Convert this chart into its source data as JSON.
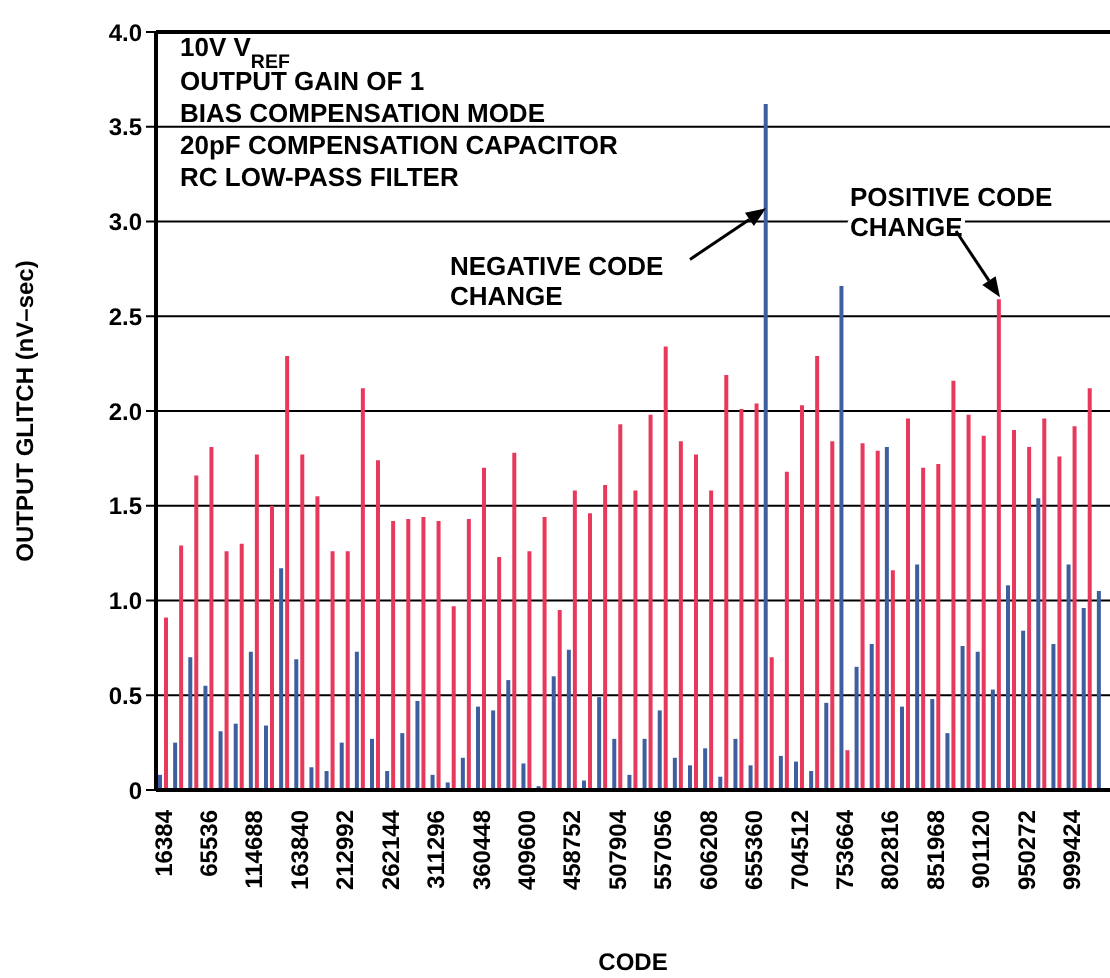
{
  "chart_data": {
    "type": "bar",
    "xlabel": "CODE",
    "ylabel": "OUTPUT GLITCH (nV–sec)",
    "categories": [
      "16384",
      null,
      null,
      "65536",
      null,
      null,
      "114688",
      null,
      null,
      "163840",
      null,
      null,
      "212992",
      null,
      null,
      "262144",
      null,
      null,
      "311296",
      null,
      null,
      "360448",
      null,
      null,
      "409600",
      null,
      null,
      "458752",
      null,
      null,
      "507904",
      null,
      null,
      "557056",
      null,
      null,
      "606208",
      null,
      null,
      "655360",
      null,
      null,
      "704512",
      null,
      null,
      "753664",
      null,
      null,
      "802816",
      null,
      null,
      "851968",
      null,
      null,
      "901120",
      null,
      null,
      "950272",
      null,
      null,
      "999424",
      null,
      null
    ],
    "series": [
      {
        "color": "#3d5f9f",
        "values": [
          0.08,
          0.25,
          0.7,
          0.55,
          0.31,
          0.35,
          0.73,
          0.34,
          1.17,
          0.69,
          0.12,
          0.1,
          0.25,
          0.73,
          0.27,
          0.1,
          0.3,
          0.47,
          0.08,
          0.04,
          0.17,
          0.44,
          0.42,
          0.58,
          0.14,
          0.02,
          0.6,
          0.74,
          0.05,
          0.49,
          0.27,
          0.08,
          0.27,
          0.42,
          0.17,
          0.13,
          0.22,
          0.07,
          0.27,
          0.13,
          3.62,
          0.18,
          0.15,
          0.1,
          0.46,
          2.66,
          0.65,
          0.77,
          1.81,
          0.44,
          1.19,
          0.48,
          0.3,
          0.76,
          0.73,
          0.53,
          1.08,
          0.84,
          1.54,
          0.77,
          1.19,
          0.96,
          1.05
        ]
      },
      {
        "color": "#e8385c",
        "values": [
          0.91,
          1.29,
          1.66,
          1.81,
          1.26,
          1.3,
          1.77,
          1.5,
          2.29,
          1.77,
          1.55,
          1.26,
          1.26,
          2.12,
          1.74,
          1.42,
          1.43,
          1.44,
          1.42,
          0.97,
          1.43,
          1.7,
          1.23,
          1.78,
          1.26,
          1.44,
          0.95,
          1.58,
          1.46,
          1.61,
          1.93,
          1.58,
          1.98,
          2.34,
          1.84,
          1.77,
          1.58,
          2.19,
          2.01,
          2.04,
          0.7,
          1.68,
          2.03,
          2.29,
          1.84,
          0.21,
          1.83,
          1.79,
          1.16,
          1.96,
          1.7,
          1.72,
          2.16,
          1.98,
          1.87,
          2.59,
          1.9,
          1.81,
          1.96,
          1.76,
          1.92,
          2.12,
          null
        ]
      }
    ],
    "ylim": [
      0,
      4
    ],
    "yticks": [
      0,
      0.5,
      {
        "value": 1,
        "label": "1.0"
      },
      {
        "value": 1.5,
        "label": "1.5"
      },
      {
        "value": 2,
        "label": "2.0"
      },
      {
        "value": 2.5,
        "label": "2.5"
      },
      {
        "value": 3,
        "label": "3.0"
      },
      {
        "value": 3.5,
        "label": "3.5"
      },
      {
        "value": 4,
        "label": "4.0"
      }
    ],
    "grid": "y",
    "annotations": [
      "10V V$_{REF}$",
      "OUTPUT GAIN OF 1",
      "BIAS COMPENSATION MODE",
      "20pF COMPENSATION CAPACITOR",
      "RC LOW-PASS FILTER",
      "NEGATIVE CODE CHANGE",
      "POSITIVE CODE CHANGE"
    ]
  }
}
